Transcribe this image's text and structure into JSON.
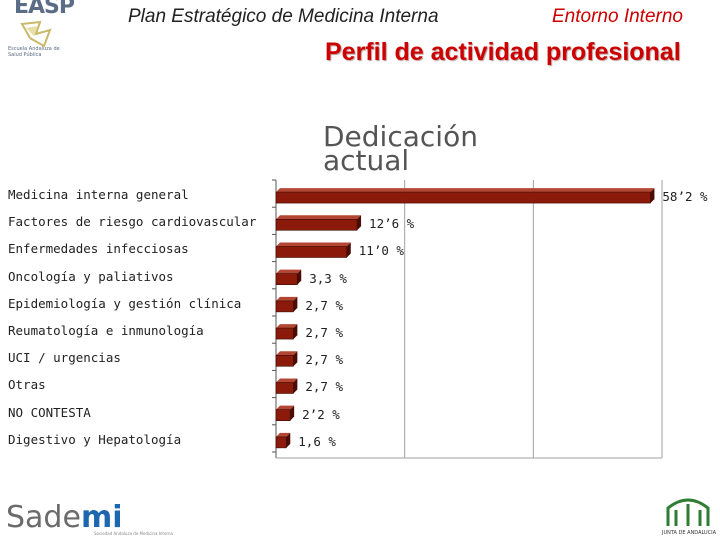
{
  "header": {
    "left_title": "Plan Estratégico de Medicina Interna",
    "right_title": "Entorno Interno",
    "page_title": "Perfil de actividad profesional"
  },
  "logos": {
    "easp_text": "EASP",
    "easp_sub": "Escuela Andaluza de Salud Pública",
    "sademi_text": "Sademi",
    "sademi_sub": "Sociedad Andaluza de Medicina Interna",
    "junta_caption": "JUNTA DE ANDALUCIA"
  },
  "colors": {
    "bar_fill": "#7a1608",
    "bar_front": "#8b1a0b",
    "bar_top": "#b44634",
    "bar_side": "#4a0c04",
    "title_red": "#cc0000",
    "grid": "#a0a0a0"
  },
  "chart_data": {
    "type": "bar",
    "orientation": "horizontal",
    "title": "Dedicación actual",
    "categories": [
      "Medicina interna general",
      "Factores de riesgo cardiovascular",
      "Enfermedades infecciosas",
      "Oncología y paliativos",
      "Epidemiología y gestión clínica",
      "Reumatología e inmunología",
      "UCI / urgencias",
      "Otras",
      "NO CONTESTA",
      "Digestivo y Hepatología"
    ],
    "values": [
      58.2,
      12.6,
      11.0,
      3.3,
      2.7,
      2.7,
      2.7,
      2.7,
      2.2,
      1.6
    ],
    "value_labels": [
      "58’2 %",
      "12’6 %",
      "11’0 %",
      "3,3 %",
      "2,7 %",
      "2,7 %",
      "2,7 %",
      "2,7 %",
      "2’2 %",
      "1,6 %"
    ],
    "xlim": [
      0,
      60
    ],
    "grid": true,
    "gridlines_at": [
      0,
      20,
      40,
      60
    ]
  }
}
